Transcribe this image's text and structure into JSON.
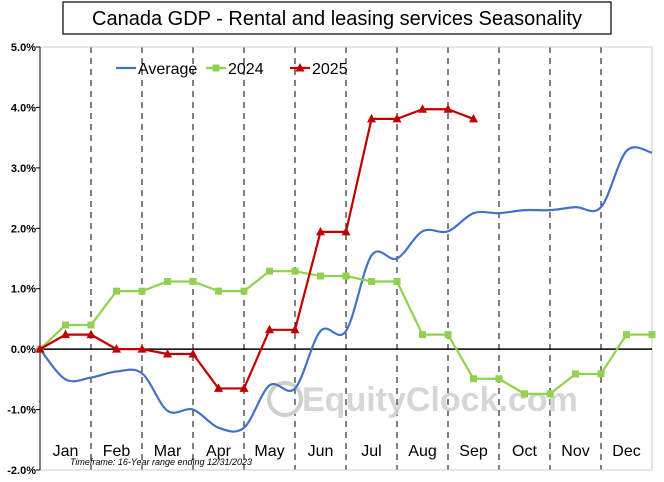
{
  "chart_data": {
    "type": "line",
    "title": "Canada GDP - Rental and leasing services Seasonality",
    "xlabel": "",
    "ylabel": "",
    "categories": [
      "Jan",
      "Feb",
      "Mar",
      "Apr",
      "May",
      "Jun",
      "Jul",
      "Aug",
      "Sep",
      "Oct",
      "Nov",
      "Dec"
    ],
    "y_ticks": [
      "-2.0%",
      "-1.0%",
      "0.0%",
      "1.0%",
      "2.0%",
      "3.0%",
      "4.0%",
      "5.0%"
    ],
    "ylim": [
      -2.0,
      5.0
    ],
    "grid": "vertical dashed",
    "legend_position": "top-left",
    "footnote": "Timeframe: 16-Year range ending 12/31/2023",
    "watermark": "EquityClock.com",
    "series": [
      {
        "name": "Average",
        "color": "#4472c4",
        "marker": "none",
        "points": [
          [
            0.0,
            0.0
          ],
          [
            0.5,
            -0.5
          ],
          [
            1.0,
            -0.47
          ],
          [
            1.5,
            -0.37
          ],
          [
            2.0,
            -0.4
          ],
          [
            2.5,
            -1.02
          ],
          [
            3.0,
            -1.0
          ],
          [
            3.5,
            -1.3
          ],
          [
            4.0,
            -1.3
          ],
          [
            4.5,
            -0.6
          ],
          [
            5.0,
            -0.65
          ],
          [
            5.5,
            0.3
          ],
          [
            6.0,
            0.3
          ],
          [
            6.5,
            1.55
          ],
          [
            7.0,
            1.5
          ],
          [
            7.5,
            1.95
          ],
          [
            8.0,
            1.95
          ],
          [
            8.5,
            2.25
          ],
          [
            9.0,
            2.25
          ],
          [
            9.5,
            2.3
          ],
          [
            10.0,
            2.3
          ],
          [
            10.5,
            2.35
          ],
          [
            11.0,
            2.35
          ],
          [
            11.5,
            3.28
          ],
          [
            12.0,
            3.25
          ]
        ]
      },
      {
        "name": "2024",
        "color": "#92d050",
        "marker": "square",
        "points": [
          [
            0.0,
            0.0
          ],
          [
            0.5,
            0.4
          ],
          [
            1.0,
            0.4
          ],
          [
            1.5,
            0.96
          ],
          [
            2.0,
            0.96
          ],
          [
            2.5,
            1.12
          ],
          [
            3.0,
            1.12
          ],
          [
            3.5,
            0.96
          ],
          [
            4.0,
            0.96
          ],
          [
            4.5,
            1.29
          ],
          [
            5.0,
            1.29
          ],
          [
            5.5,
            1.21
          ],
          [
            6.0,
            1.21
          ],
          [
            6.5,
            1.12
          ],
          [
            7.0,
            1.12
          ],
          [
            7.5,
            0.24
          ],
          [
            8.0,
            0.24
          ],
          [
            8.5,
            -0.49
          ],
          [
            9.0,
            -0.49
          ],
          [
            9.5,
            -0.74
          ],
          [
            10.0,
            -0.74
          ],
          [
            10.5,
            -0.41
          ],
          [
            11.0,
            -0.41
          ],
          [
            11.5,
            0.24
          ],
          [
            12.0,
            0.24
          ]
        ]
      },
      {
        "name": "2025",
        "color": "#c00000",
        "marker": "triangle",
        "points": [
          [
            0.0,
            0.0
          ],
          [
            0.5,
            0.24
          ],
          [
            1.0,
            0.24
          ],
          [
            1.5,
            0.0
          ],
          [
            2.0,
            0.0
          ],
          [
            2.5,
            -0.08
          ],
          [
            3.0,
            -0.08
          ],
          [
            3.5,
            -0.65
          ],
          [
            4.0,
            -0.65
          ],
          [
            4.5,
            0.32
          ],
          [
            5.0,
            0.32
          ],
          [
            5.5,
            1.94
          ],
          [
            6.0,
            1.94
          ],
          [
            6.5,
            3.81
          ],
          [
            7.0,
            3.81
          ],
          [
            7.5,
            3.97
          ],
          [
            8.0,
            3.97
          ],
          [
            8.5,
            3.81
          ]
        ]
      }
    ]
  }
}
